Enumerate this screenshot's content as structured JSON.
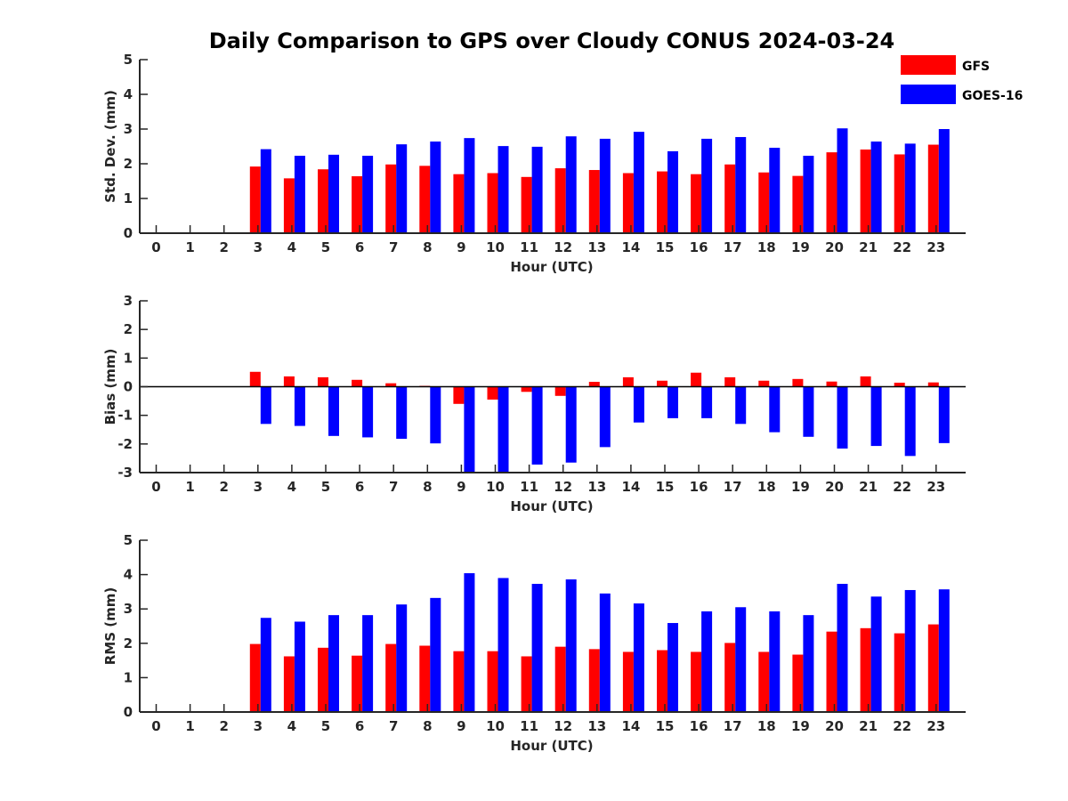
{
  "title": "Daily Comparison to GPS over Cloudy CONUS 2024-03-24",
  "legend": [
    {
      "name": "GFS",
      "color": "#ff0000"
    },
    {
      "name": "GOES-16",
      "color": "#0000ff"
    }
  ],
  "chart_data": [
    {
      "type": "bar",
      "title": "",
      "xlabel": "Hour (UTC)",
      "ylabel": "Std. Dev. (mm)",
      "categories": [
        "0",
        "1",
        "2",
        "3",
        "4",
        "5",
        "6",
        "7",
        "8",
        "9",
        "10",
        "11",
        "12",
        "13",
        "14",
        "15",
        "16",
        "17",
        "18",
        "19",
        "20",
        "21",
        "22",
        "23"
      ],
      "ylim": [
        0,
        5
      ],
      "yticks": [
        "0",
        "1",
        "2",
        "3",
        "4",
        "5"
      ],
      "grid": false,
      "legend_position": "top-right",
      "series": [
        {
          "name": "GFS",
          "color": "#ff0000",
          "values": [
            null,
            null,
            null,
            1.92,
            1.58,
            1.84,
            1.64,
            1.98,
            1.94,
            1.7,
            1.73,
            1.62,
            1.87,
            1.82,
            1.73,
            1.78,
            1.7,
            1.98,
            1.75,
            1.65,
            2.33,
            2.41,
            2.27,
            2.55
          ]
        },
        {
          "name": "GOES-16",
          "color": "#0000ff",
          "values": [
            null,
            null,
            null,
            2.42,
            2.23,
            2.26,
            2.23,
            2.56,
            2.64,
            2.74,
            2.51,
            2.49,
            2.79,
            2.72,
            2.92,
            2.36,
            2.72,
            2.77,
            2.46,
            2.23,
            3.02,
            2.64,
            2.58,
            3.0
          ]
        }
      ]
    },
    {
      "type": "bar",
      "title": "",
      "xlabel": "Hour (UTC)",
      "ylabel": "Bias (mm)",
      "categories": [
        "0",
        "1",
        "2",
        "3",
        "4",
        "5",
        "6",
        "7",
        "8",
        "9",
        "10",
        "11",
        "12",
        "13",
        "14",
        "15",
        "16",
        "17",
        "18",
        "19",
        "20",
        "21",
        "22",
        "23"
      ],
      "ylim": [
        -3,
        3
      ],
      "yticks": [
        "-3",
        "-2",
        "-1",
        "0",
        "1",
        "2",
        "3"
      ],
      "grid": false,
      "zero_line": true,
      "series": [
        {
          "name": "GFS",
          "color": "#ff0000",
          "values": [
            null,
            null,
            null,
            0.52,
            0.36,
            0.33,
            0.24,
            0.12,
            0.03,
            -0.6,
            -0.45,
            -0.18,
            -0.32,
            0.17,
            0.33,
            0.21,
            0.49,
            0.33,
            0.21,
            0.27,
            0.18,
            0.36,
            0.14,
            0.15
          ]
        },
        {
          "name": "GOES-16",
          "color": "#0000ff",
          "values": [
            null,
            null,
            null,
            -1.3,
            -1.37,
            -1.72,
            -1.77,
            -1.82,
            -1.98,
            -3.0,
            -2.98,
            -2.72,
            -2.65,
            -2.11,
            -1.25,
            -1.1,
            -1.1,
            -1.3,
            -1.59,
            -1.75,
            -2.16,
            -2.07,
            -2.42,
            -1.97
          ]
        }
      ]
    },
    {
      "type": "bar",
      "title": "",
      "xlabel": "Hour (UTC)",
      "ylabel": "RMS (mm)",
      "categories": [
        "0",
        "1",
        "2",
        "3",
        "4",
        "5",
        "6",
        "7",
        "8",
        "9",
        "10",
        "11",
        "12",
        "13",
        "14",
        "15",
        "16",
        "17",
        "18",
        "19",
        "20",
        "21",
        "22",
        "23"
      ],
      "ylim": [
        0,
        5
      ],
      "yticks": [
        "0",
        "1",
        "2",
        "3",
        "4",
        "5"
      ],
      "grid": false,
      "series": [
        {
          "name": "GFS",
          "color": "#ff0000",
          "values": [
            null,
            null,
            null,
            1.98,
            1.62,
            1.87,
            1.64,
            1.98,
            1.93,
            1.77,
            1.77,
            1.62,
            1.9,
            1.83,
            1.75,
            1.8,
            1.75,
            2.01,
            1.75,
            1.67,
            2.34,
            2.44,
            2.29,
            2.55
          ]
        },
        {
          "name": "GOES-16",
          "color": "#0000ff",
          "values": [
            null,
            null,
            null,
            2.74,
            2.63,
            2.82,
            2.82,
            3.13,
            3.32,
            4.04,
            3.9,
            3.73,
            3.86,
            3.45,
            3.16,
            2.59,
            2.93,
            3.05,
            2.93,
            2.82,
            3.73,
            3.36,
            3.55,
            3.57
          ]
        }
      ]
    }
  ]
}
